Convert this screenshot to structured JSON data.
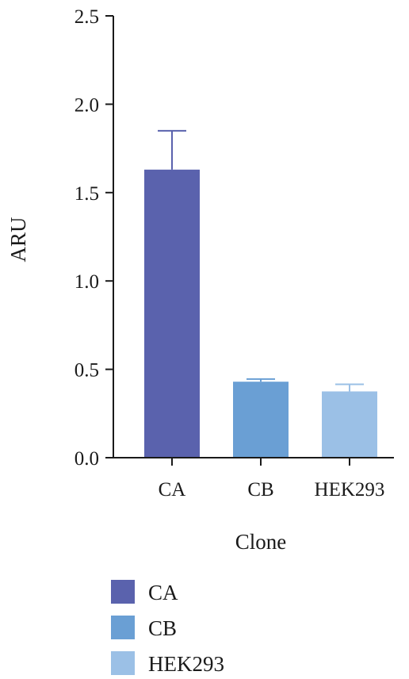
{
  "chart_data": {
    "type": "bar",
    "categories": [
      "CA",
      "CB",
      "HEK293"
    ],
    "values": [
      1.63,
      0.43,
      0.375
    ],
    "errors": [
      0.22,
      0.015,
      0.04
    ],
    "colors": [
      "#5a62ad",
      "#6a9fd4",
      "#9bc0e6"
    ],
    "xlabel": "Clone",
    "ylabel": "ARU",
    "ylim": [
      0,
      2.5
    ],
    "yticks": [
      "0.0",
      "0.5",
      "1.0",
      "1.5",
      "2.0",
      "2.5"
    ],
    "legend": {
      "position": "bottom-left",
      "entries": [
        "CA",
        "CB",
        "HEK293"
      ]
    },
    "grid": false
  }
}
